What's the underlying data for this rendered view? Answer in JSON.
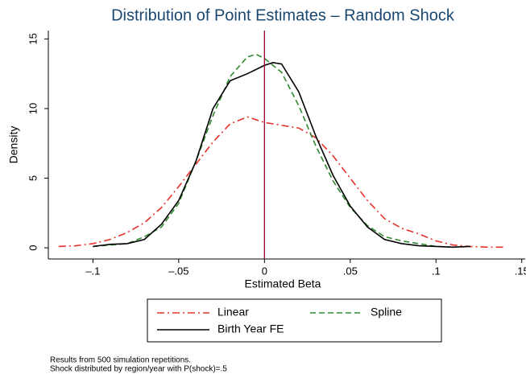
{
  "chart_data": {
    "type": "line",
    "title": "Distribution of Point Estimates – Random Shock",
    "x_label": "Estimated Beta",
    "y_label": "Density",
    "xlim": [
      -0.126,
      0.152
    ],
    "ylim": [
      -0.8,
      15.6
    ],
    "xticks": [
      {
        "value": -0.1,
        "label": "–.1"
      },
      {
        "value": -0.05,
        "label": "–.05"
      },
      0,
      {
        "value": 0.05,
        "label": ".05"
      },
      {
        "value": 0.1,
        "label": ".1"
      },
      {
        "value": 0.15,
        "label": ".15"
      }
    ],
    "yticks": [
      0,
      5,
      10,
      15
    ],
    "xline": 0,
    "xline_color": "#990033",
    "legend": "bottom",
    "series": [
      {
        "name": "Linear",
        "color": "#e8302a",
        "dash": "dash-dot",
        "x": [
          -0.12,
          -0.11,
          -0.1,
          -0.09,
          -0.08,
          -0.07,
          -0.06,
          -0.05,
          -0.04,
          -0.03,
          -0.02,
          -0.01,
          0,
          0.01,
          0.02,
          0.03,
          0.04,
          0.05,
          0.06,
          0.07,
          0.08,
          0.09,
          0.1,
          0.11,
          0.12,
          0.13,
          0.14
        ],
        "values": [
          0.1,
          0.15,
          0.3,
          0.6,
          1.1,
          1.8,
          2.9,
          4.4,
          6.0,
          7.6,
          8.9,
          9.4,
          9.0,
          8.8,
          8.6,
          7.9,
          6.6,
          5.0,
          3.4,
          2.1,
          1.4,
          1.0,
          0.5,
          0.2,
          0.1,
          0.05,
          0.05
        ]
      },
      {
        "name": "Spline",
        "color": "#2e8b2e",
        "dash": "dash",
        "x": [
          -0.1,
          -0.09,
          -0.08,
          -0.07,
          -0.06,
          -0.05,
          -0.04,
          -0.03,
          -0.02,
          -0.01,
          -0.005,
          0,
          0.01,
          0.02,
          0.03,
          0.04,
          0.05,
          0.06,
          0.07,
          0.08,
          0.09,
          0.1,
          0.11
        ],
        "values": [
          0.1,
          0.2,
          0.3,
          0.8,
          1.5,
          3.2,
          6.2,
          9.5,
          12.3,
          13.7,
          13.9,
          13.6,
          12.6,
          10.2,
          7.3,
          4.8,
          2.9,
          1.6,
          0.8,
          0.5,
          0.3,
          0.1,
          0.05
        ]
      },
      {
        "name": "Birth Year FE",
        "color": "#000000",
        "dash": "solid",
        "x": [
          -0.1,
          -0.09,
          -0.08,
          -0.07,
          -0.06,
          -0.05,
          -0.04,
          -0.03,
          -0.02,
          -0.01,
          0,
          0.005,
          0.01,
          0.02,
          0.03,
          0.04,
          0.05,
          0.06,
          0.07,
          0.08,
          0.09,
          0.1,
          0.11,
          0.12
        ],
        "values": [
          0.1,
          0.25,
          0.3,
          0.6,
          1.7,
          3.4,
          6.2,
          10.0,
          12.0,
          12.5,
          13.1,
          13.3,
          13.2,
          11.2,
          8.0,
          5.2,
          3.0,
          1.5,
          0.6,
          0.3,
          0.15,
          0.1,
          0.05,
          0.1
        ]
      }
    ],
    "notes": [
      "Results from 500 simulation repetitions.",
      "Shock distributed by region/year with P(shock)=.5"
    ]
  }
}
